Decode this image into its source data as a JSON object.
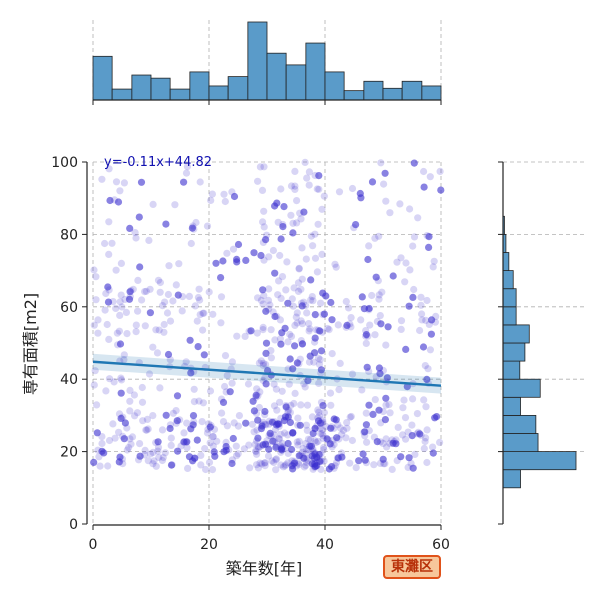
{
  "chart_data": {
    "type": "scatter",
    "xlabel": "築年数[年]",
    "ylabel": "専有面積[m2]",
    "xlim": [
      0,
      60
    ],
    "ylim": [
      0,
      100
    ],
    "xticks": [
      0,
      20,
      40,
      60
    ],
    "yticks": [
      0,
      20,
      40,
      60,
      80,
      100
    ],
    "grid": true,
    "regression": {
      "equation": "y=-0.11x+44.82",
      "slope": -0.11,
      "intercept": 44.82
    },
    "point_color": "#3a2fcf",
    "line_color": "#1f77b4",
    "hist_color": "#5a9bc9",
    "top_histogram": {
      "bins": [
        0,
        3.3,
        6.7,
        10,
        13.3,
        16.7,
        20,
        23.3,
        26.7,
        30,
        33.3,
        36.7,
        40,
        43.3,
        46.7,
        50,
        53.3,
        56.7,
        60
      ],
      "counts": [
        56,
        14,
        32,
        28,
        14,
        36,
        18,
        30,
        100,
        60,
        45,
        73,
        36,
        12,
        24,
        15,
        24,
        18
      ]
    },
    "right_histogram": {
      "bins": [
        10,
        15,
        20,
        25,
        30,
        35,
        40,
        45,
        50,
        55,
        60,
        65,
        70,
        75,
        80,
        85,
        90,
        95,
        100
      ],
      "counts": [
        2,
        8,
        7,
        4,
        3,
        5,
        2,
        3,
        3,
        4,
        1,
        2,
        3,
        2,
        1,
        1,
        0,
        0
      ],
      "counts_scale": [
        24,
        100,
        48,
        45,
        24,
        51,
        23,
        30,
        36,
        18,
        18,
        14,
        8,
        4,
        2,
        0,
        0,
        0
      ]
    }
  },
  "ward_label": "東灘区"
}
